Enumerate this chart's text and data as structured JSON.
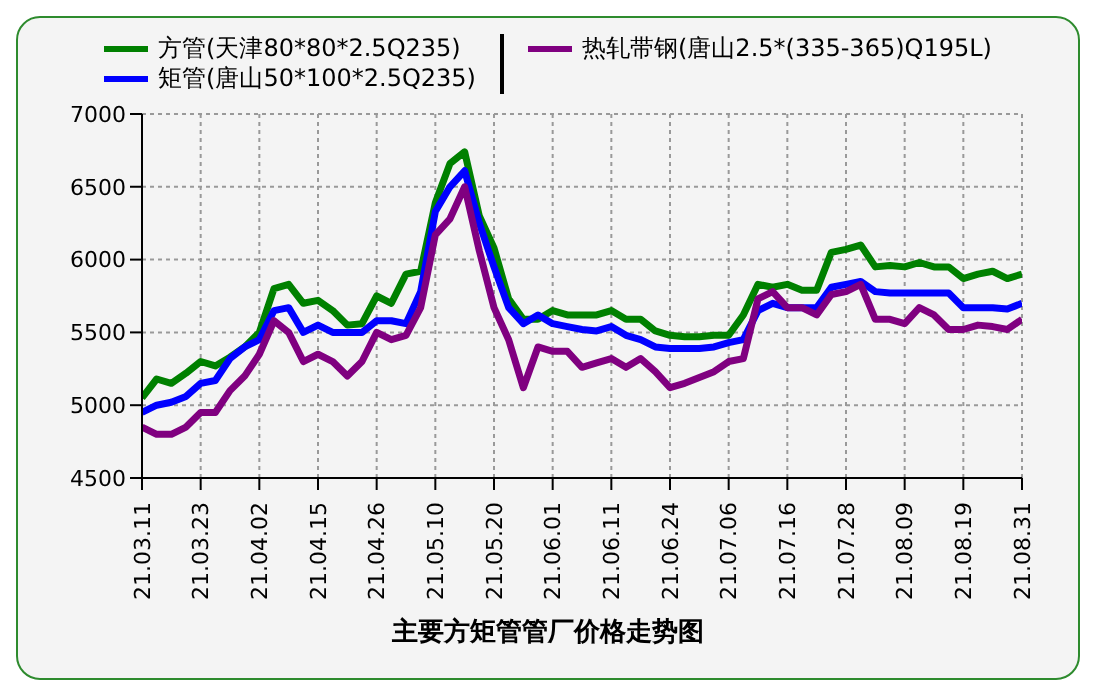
{
  "chart_data": {
    "type": "line",
    "title": "主要方矩管管厂价格走势图",
    "categories": [
      "21.03.11",
      null,
      null,
      null,
      "21.03.23",
      null,
      null,
      null,
      "21.04.02",
      null,
      null,
      null,
      "21.04.15",
      null,
      null,
      null,
      "21.04.26",
      null,
      null,
      null,
      "21.05.10",
      null,
      null,
      null,
      "21.05.20",
      null,
      null,
      null,
      "21.06.01",
      null,
      null,
      null,
      "21.06.11",
      null,
      null,
      null,
      "21.06.24",
      null,
      null,
      null,
      "21.07.06",
      null,
      null,
      null,
      "21.07.16",
      null,
      null,
      null,
      "21.07.28",
      null,
      null,
      null,
      "21.08.09",
      null,
      null,
      null,
      "21.08.19",
      null,
      null,
      null,
      "21.08.31"
    ],
    "series": [
      {
        "name": "方管(天津80*80*2.5Q235)",
        "color": "#008000",
        "values": [
          5050,
          5180,
          5150,
          5220,
          5300,
          5270,
          5330,
          5400,
          5500,
          5800,
          5830,
          5700,
          5720,
          5650,
          5550,
          5560,
          5750,
          5700,
          5900,
          5920,
          6390,
          6660,
          6740,
          6300,
          6080,
          5730,
          5590,
          5590,
          5650,
          5620,
          5620,
          5620,
          5650,
          5590,
          5590,
          5510,
          5480,
          5470,
          5470,
          5480,
          5480,
          5620,
          5830,
          5810,
          5830,
          5790,
          5790,
          6050,
          6070,
          6100,
          5950,
          5960,
          5950,
          5980,
          5950,
          5950,
          5870,
          5900,
          5920,
          5870,
          5900
        ]
      },
      {
        "name": "矩管(唐山50*100*2.5Q235)",
        "color": "#0000ff",
        "values": [
          4950,
          5000,
          5020,
          5060,
          5150,
          5170,
          5320,
          5400,
          5450,
          5650,
          5670,
          5500,
          5550,
          5500,
          5500,
          5500,
          5580,
          5580,
          5560,
          5780,
          6330,
          6500,
          6610,
          6250,
          5950,
          5670,
          5560,
          5620,
          5560,
          5540,
          5520,
          5510,
          5540,
          5480,
          5450,
          5400,
          5390,
          5390,
          5390,
          5400,
          5430,
          5450,
          5650,
          5700,
          5670,
          5670,
          5670,
          5810,
          5830,
          5850,
          5780,
          5770,
          5770,
          5770,
          5770,
          5770,
          5670,
          5670,
          5670,
          5660,
          5700
        ]
      },
      {
        "name": "热轧带钢(唐山2.5*(335-365)Q195L)",
        "color": "#800080",
        "values": [
          4850,
          4800,
          4800,
          4850,
          4950,
          4950,
          5100,
          5200,
          5350,
          5580,
          5500,
          5300,
          5350,
          5300,
          5200,
          5300,
          5500,
          5450,
          5480,
          5670,
          6170,
          6280,
          6500,
          6060,
          5670,
          5450,
          5120,
          5400,
          5370,
          5370,
          5260,
          5290,
          5320,
          5260,
          5320,
          5230,
          5120,
          5150,
          5190,
          5230,
          5300,
          5320,
          5730,
          5780,
          5670,
          5670,
          5620,
          5760,
          5780,
          5830,
          5590,
          5590,
          5560,
          5670,
          5620,
          5520,
          5520,
          5550,
          5540,
          5520,
          5590
        ]
      }
    ],
    "ylim": [
      4500,
      7000
    ],
    "yticks": [
      4500,
      5000,
      5500,
      6000,
      6500,
      7000
    ],
    "grid": true,
    "legend": "top",
    "marker": "none",
    "line_style": "solid"
  }
}
